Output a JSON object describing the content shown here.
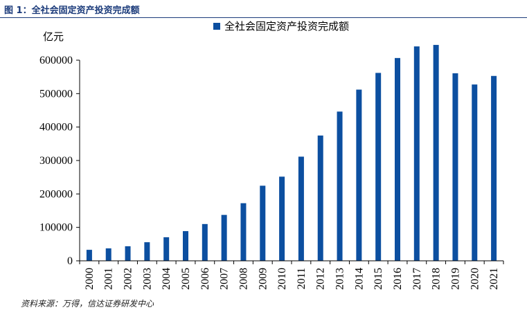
{
  "figure": {
    "title": "图 1：全社会固定资产投资完成额",
    "source": "资料来源：万得，信达证券研发中心"
  },
  "chart_data": {
    "type": "bar",
    "title": "",
    "ylabel": "亿元",
    "xlabel": "",
    "categories": [
      "2000",
      "2001",
      "2002",
      "2003",
      "2004",
      "2005",
      "2006",
      "2007",
      "2008",
      "2009",
      "2010",
      "2011",
      "2012",
      "2013",
      "2014",
      "2015",
      "2016",
      "2017",
      "2018",
      "2019",
      "2020",
      "2021"
    ],
    "series": [
      {
        "name": "全社会固定资产投资完成额",
        "color": "#0c4fa0",
        "values": [
          32900,
          37200,
          43500,
          55600,
          70500,
          88800,
          110000,
          137300,
          172300,
          224600,
          251700,
          311500,
          374700,
          446300,
          512000,
          562000,
          606500,
          641200,
          645700,
          560900,
          527300,
          552900
        ]
      }
    ],
    "ylim": [
      0,
      600000
    ],
    "yticks": [
      0,
      100000,
      200000,
      300000,
      400000,
      500000,
      600000
    ],
    "legend_position": "top-center",
    "grid": false
  }
}
